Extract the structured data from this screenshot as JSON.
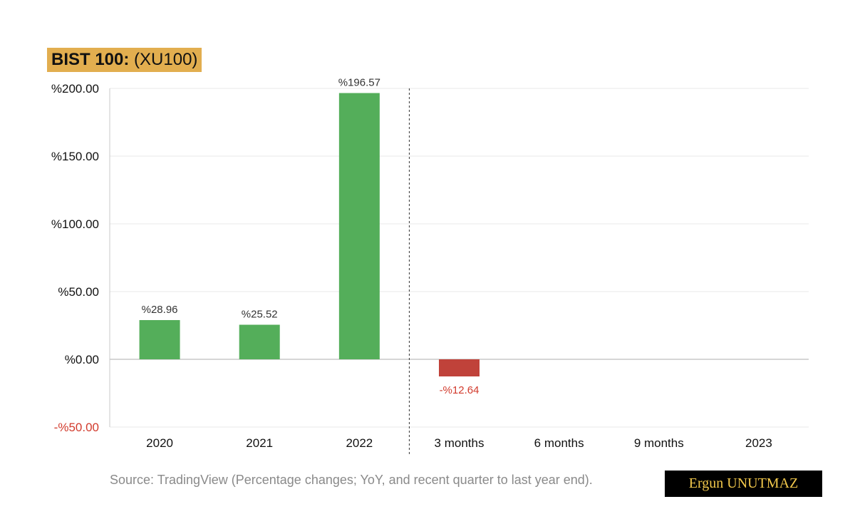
{
  "header": {
    "title_bold": "BIST 100:",
    "title_rest": "(XU100)"
  },
  "chart_data": {
    "type": "bar",
    "categories": [
      "2020",
      "2021",
      "2022",
      "3 months",
      "6 months",
      "9 months",
      "2023"
    ],
    "values": [
      28.96,
      25.52,
      196.57,
      -12.64,
      null,
      null,
      null
    ],
    "data_labels": [
      "%28.96",
      "%25.52",
      "%196.57",
      "-%12.64",
      "",
      "",
      ""
    ],
    "yticks": [
      200,
      150,
      100,
      50,
      0,
      -50
    ],
    "ytick_labels": [
      "%200.00",
      "%150.00",
      "%100.00",
      "%50.00",
      "%0.00",
      "-%50.00"
    ],
    "ylim": [
      -50,
      200
    ],
    "grid": true,
    "divider_after_category": "2022",
    "colors": {
      "positive": "#54ae5a",
      "negative": "#c0423a",
      "negative_text": "#d23b2d",
      "grid": "#e8e8e8",
      "axis": "#c8c8c8"
    }
  },
  "footer": {
    "source": "Source: TradingView (Percentage changes; YoY, and recent quarter to last year end).",
    "author": "Ergun UNUTMAZ"
  }
}
